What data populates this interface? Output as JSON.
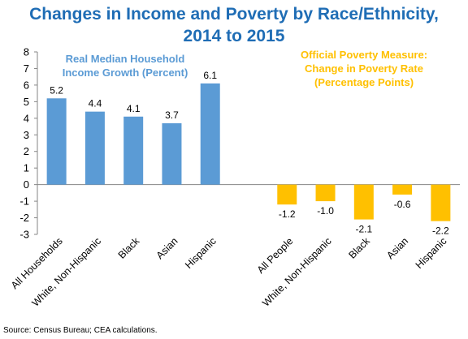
{
  "chart_data": {
    "type": "bar",
    "title": [
      "Changes in Income and Poverty by Race/Ethnicity,",
      "2014 to 2015"
    ],
    "ylim": [
      -3,
      8
    ],
    "yticks": [
      8,
      7,
      6,
      5,
      4,
      3,
      2,
      1,
      0,
      -1,
      -2,
      -3
    ],
    "grid": false,
    "series": [
      {
        "name": [
          "Real Median Household",
          "Income Growth (Percent)"
        ],
        "color": "#5b9bd5",
        "categories": [
          "All Households",
          "White, Non-Hispanic",
          "Black",
          "Asian",
          "Hispanic"
        ],
        "values": [
          5.2,
          4.4,
          4.1,
          3.7,
          6.1
        ],
        "labels": [
          "5.2",
          "4.4",
          "4.1",
          "3.7",
          "6.1"
        ]
      },
      {
        "name": [
          "Official Poverty Measure:",
          "Change in Poverty Rate",
          "(Percentage Points)"
        ],
        "color": "#ffc000",
        "categories": [
          "All People",
          "White, Non-Hispanic",
          "Black",
          "Asian",
          "Hispanic"
        ],
        "values": [
          -1.2,
          -1.0,
          -2.1,
          -0.6,
          -2.2
        ],
        "labels": [
          "-1.2",
          "-1.0",
          "-2.1",
          "-0.6",
          "-2.2"
        ]
      }
    ]
  },
  "source": "Source: Census Bureau; CEA calculations."
}
